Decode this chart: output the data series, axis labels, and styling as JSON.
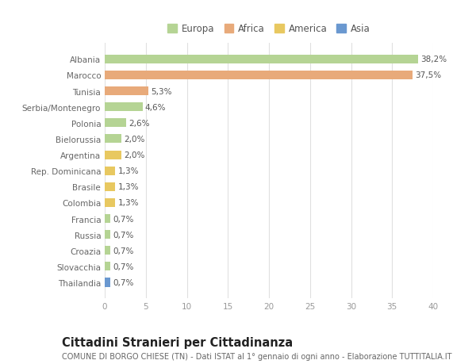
{
  "categories": [
    "Albania",
    "Marocco",
    "Tunisia",
    "Serbia/Montenegro",
    "Polonia",
    "Bielorussia",
    "Argentina",
    "Rep. Dominicana",
    "Brasile",
    "Colombia",
    "Francia",
    "Russia",
    "Croazia",
    "Slovacchia",
    "Thailandia"
  ],
  "values": [
    38.2,
    37.5,
    5.3,
    4.6,
    2.6,
    2.0,
    2.0,
    1.3,
    1.3,
    1.3,
    0.7,
    0.7,
    0.7,
    0.7,
    0.7
  ],
  "labels": [
    "38,2%",
    "37,5%",
    "5,3%",
    "4,6%",
    "2,6%",
    "2,0%",
    "2,0%",
    "1,3%",
    "1,3%",
    "1,3%",
    "0,7%",
    "0,7%",
    "0,7%",
    "0,7%",
    "0,7%"
  ],
  "colors": [
    "#b5d494",
    "#e8aa7a",
    "#e8aa7a",
    "#b5d494",
    "#b5d494",
    "#b5d494",
    "#e8c860",
    "#e8c860",
    "#e8c860",
    "#e8c860",
    "#b5d494",
    "#b5d494",
    "#b5d494",
    "#b5d494",
    "#6a98d0"
  ],
  "legend_labels": [
    "Europa",
    "Africa",
    "America",
    "Asia"
  ],
  "legend_colors": [
    "#b5d494",
    "#e8aa7a",
    "#e8c860",
    "#6a98d0"
  ],
  "title": "Cittadini Stranieri per Cittadinanza",
  "subtitle": "COMUNE DI BORGO CHIESE (TN) - Dati ISTAT al 1° gennaio di ogni anno - Elaborazione TUTTITALIA.IT",
  "xlim": [
    0,
    40
  ],
  "xticks": [
    0,
    5,
    10,
    15,
    20,
    25,
    30,
    35,
    40
  ],
  "background_color": "#ffffff",
  "plot_bg_color": "#f8f8f8",
  "grid_color": "#e0e0e0",
  "bar_height": 0.55,
  "label_fontsize": 7.5,
  "tick_fontsize": 7.5,
  "legend_fontsize": 8.5,
  "title_fontsize": 10.5,
  "subtitle_fontsize": 7.0
}
